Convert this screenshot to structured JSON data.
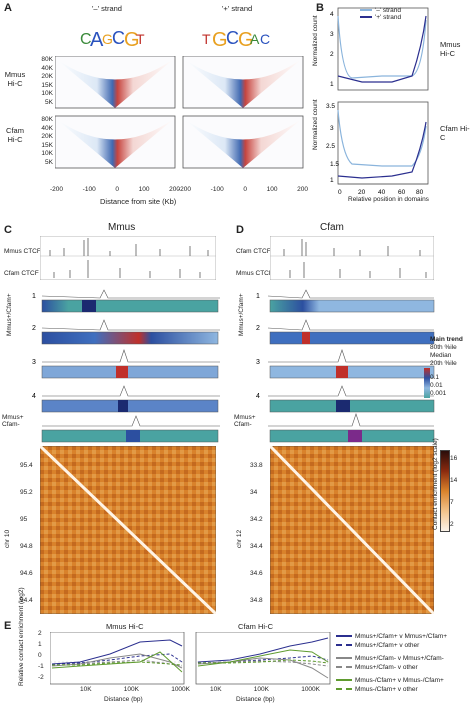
{
  "panels": {
    "A": {
      "label": "A",
      "strand_minus": "'–' strand",
      "strand_plus": "'+' strand",
      "rows": [
        "Mmus Hi-C",
        "Cfam Hi-C"
      ],
      "yticks": [
        "80K",
        "40K",
        "20K",
        "15K",
        "10K",
        "5K"
      ],
      "xticks": [
        "-200",
        "-100",
        "0",
        "100",
        "200"
      ],
      "xlabel": "Distance from site (Kb)"
    },
    "B": {
      "label": "B",
      "legend": [
        "'–' strand",
        "'+' strand"
      ],
      "ylabel": "Normalized count",
      "xlabel": "Relative position in domains",
      "rows": [
        "Mmus Hi-C",
        "Cfam Hi-C"
      ]
    },
    "C": {
      "label": "C",
      "title": "Mmus",
      "tracks": [
        "Mmus CTCF",
        "Cfam CTCF"
      ],
      "group_label": "Mmus+/Cfam+",
      "group_label2": "Mmus+ Cfam-",
      "row_numbers": [
        "1",
        "2",
        "3",
        "4"
      ],
      "scale": [
        "2Kb",
        "50Kb"
      ],
      "chr": "chr 10",
      "yticks": [
        "95.4",
        "95.2",
        "95",
        "94.8",
        "94.6",
        "94.4"
      ]
    },
    "D": {
      "label": "D",
      "title": "Cfam",
      "tracks": [
        "Cfam CTCF",
        "Mmus CTCF"
      ],
      "group_label": "Mmus+/Cfam+",
      "group_label2": "Mmus+ Cfam-",
      "row_numbers": [
        "1",
        "2",
        "3",
        "4"
      ],
      "chr": "chr 12",
      "yticks": [
        "33.8",
        "34",
        "34.2",
        "34.4",
        "34.6",
        "34.8"
      ],
      "trend_legend": [
        "Main trend",
        "80th %ile",
        "Median",
        "20th %ile",
        "0.1",
        "0.01",
        "0.001"
      ],
      "enrich_ticks": [
        "16",
        "14",
        "7",
        "2"
      ],
      "enrich_label": "Contact enrichment (log2 scale)"
    },
    "E": {
      "label": "E",
      "left_title": "Mmus Hi-C",
      "right_title": "Cfam Hi-C",
      "ylabel": "Relative contact enrichment (log2)",
      "xlabel": "Distance (bp)",
      "xticks": [
        "10K",
        "100K",
        "1000K"
      ],
      "yticks": [
        "2",
        "1",
        "0",
        "-1",
        "-2"
      ],
      "legend": [
        {
          "text": "Mmus+/Cfam+  v  Mmus+/Cfam+",
          "color": "#2b2f8f",
          "dash": false
        },
        {
          "text": "Mmus+/Cfam+  v  other",
          "color": "#2b2f8f",
          "dash": true
        },
        {
          "text": "Mmus+/Cfam-  v  Mmus+/Cfam-",
          "color": "#888888",
          "dash": false
        },
        {
          "text": "Mmus+/Cfam-  v  other",
          "color": "#888888",
          "dash": true
        },
        {
          "text": "Mmus-/Cfam+  v  Mmus-/Cfam+",
          "color": "#5f9b2f",
          "dash": false
        },
        {
          "text": "Mmus-/Cfam+  v  other",
          "color": "#5f9b2f",
          "dash": true
        }
      ]
    }
  },
  "colors": {
    "blue": "#2b2f8f",
    "lightblue": "#8ab4dc",
    "teal": "#4aa3a1",
    "orange": "#d97a2b",
    "red": "#c0302a"
  }
}
